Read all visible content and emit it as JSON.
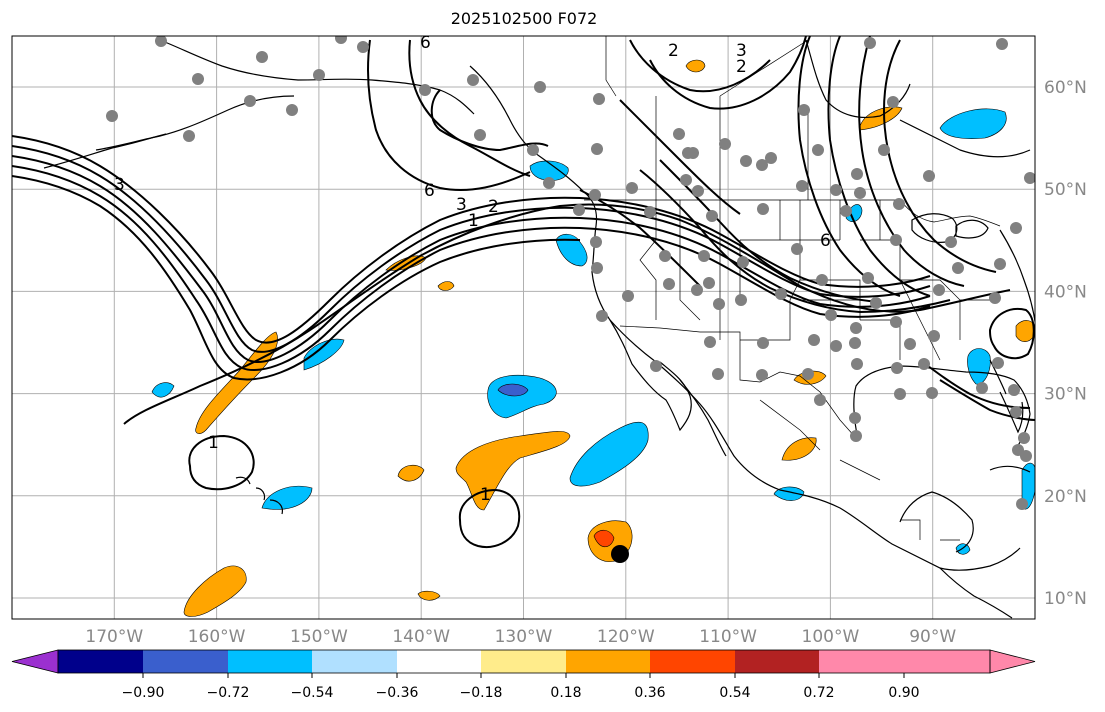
{
  "title": "2025102500 F072",
  "map": {
    "projection": "lat-lon",
    "lon_range": [
      -180,
      -80
    ],
    "lat_range": [
      8,
      65
    ],
    "grid": true,
    "lon_labels": [
      "170°W",
      "160°W",
      "150°W",
      "140°W",
      "130°W",
      "120°W",
      "110°W",
      "100°W",
      "90°W"
    ],
    "lat_labels": [
      "60°N",
      "50°N",
      "40°N",
      "30°N",
      "20°N",
      "10°N"
    ],
    "contour_labels": [
      "3",
      "6",
      "3",
      "2",
      "1",
      "1",
      "1",
      "2",
      "3",
      "2",
      "6",
      "6"
    ],
    "colors": {
      "land_outline": "#000000",
      "contour": "#000000",
      "station_dot": "#808080",
      "grid": "#b0b0b0",
      "marker": "#000000"
    }
  },
  "colorbar": {
    "colors": [
      "#9b30d0",
      "#00008b",
      "#3a5fcd",
      "#00bfff",
      "#b0e0ff",
      "#ffffff",
      "#ffec8b",
      "#ffa500",
      "#ff4500",
      "#b22222",
      "#ff88aa"
    ],
    "tick_labels": [
      "−0.90",
      "−0.72",
      "−0.54",
      "−0.36",
      "−0.18",
      "0.18",
      "0.36",
      "0.54",
      "0.72",
      "0.90"
    ],
    "extend": "both"
  }
}
